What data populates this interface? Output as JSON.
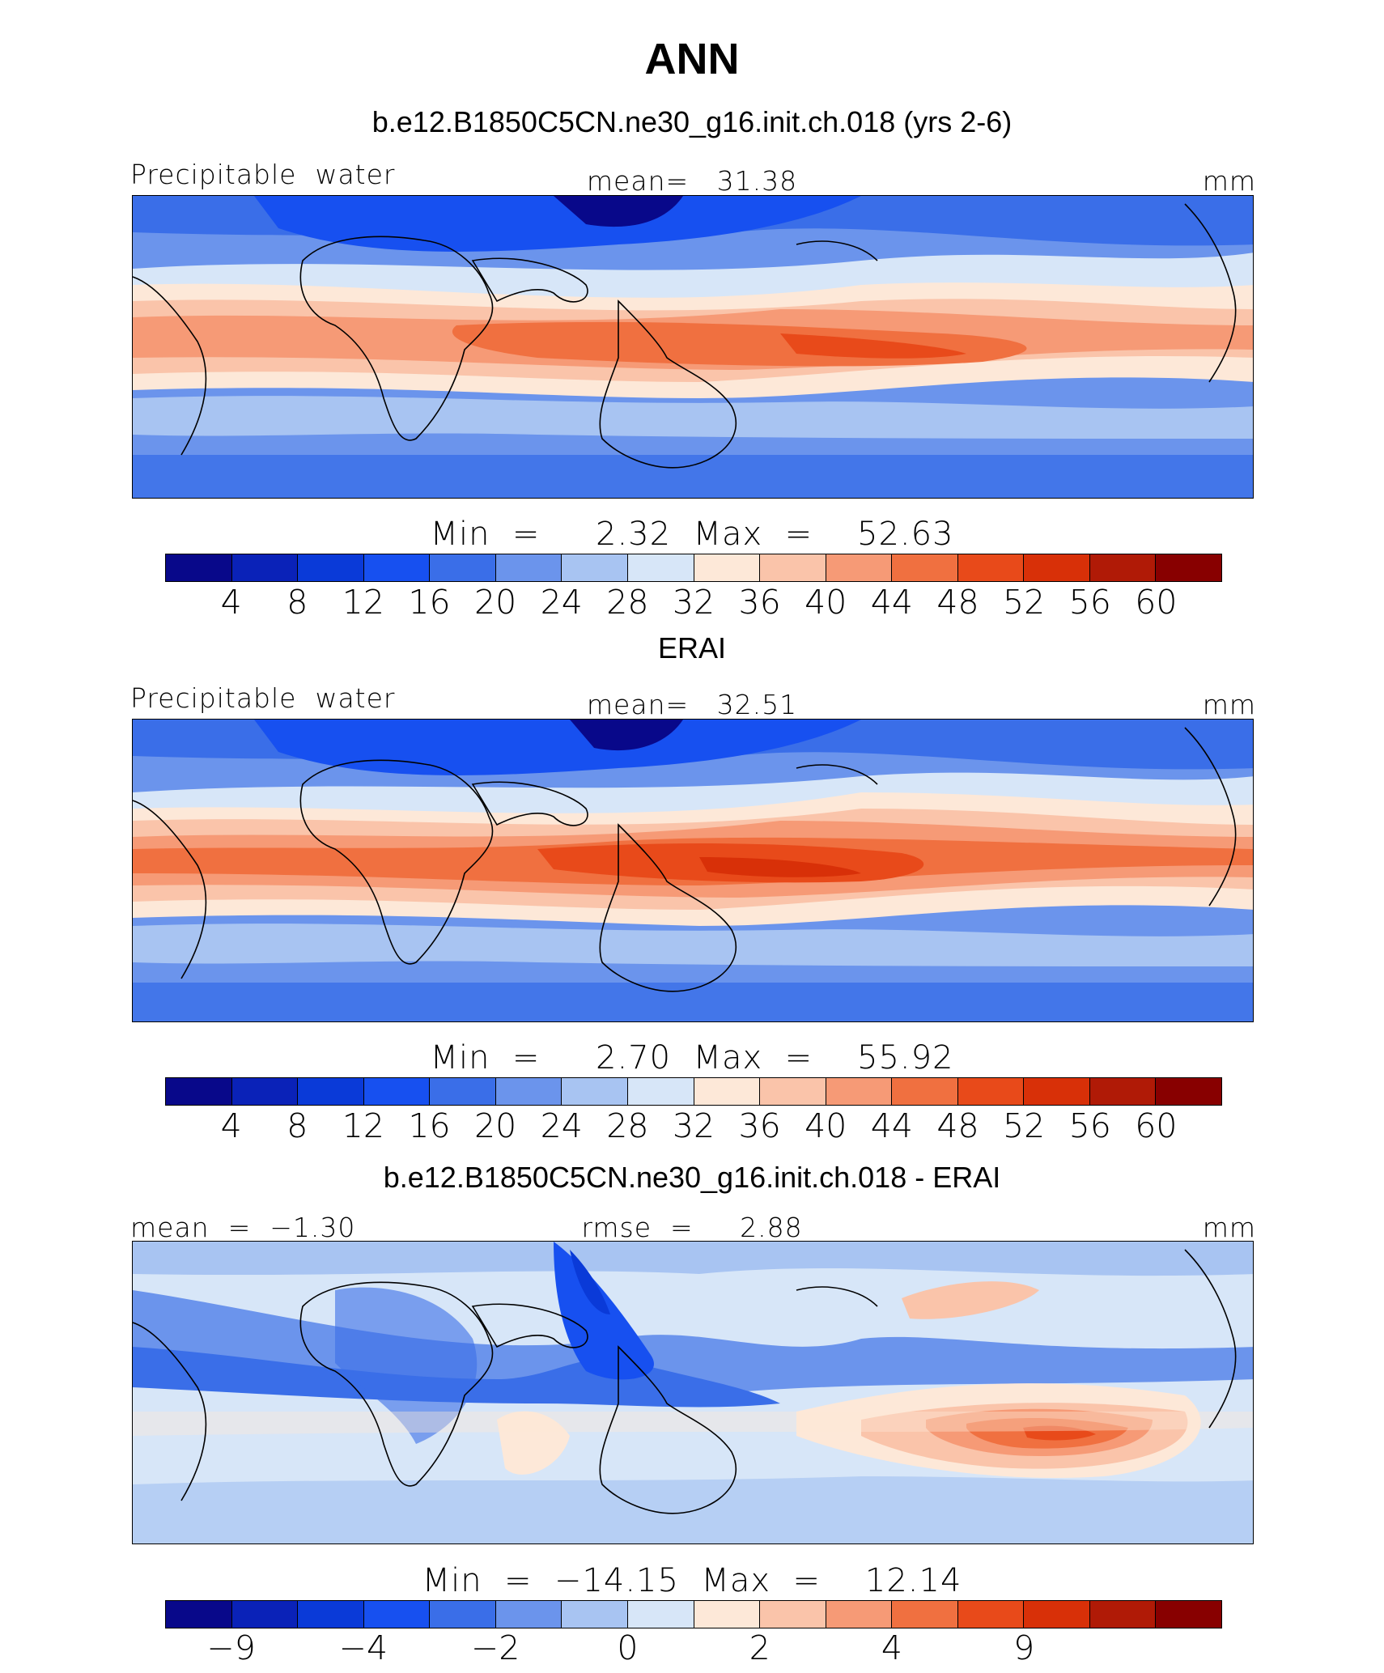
{
  "title": "ANN",
  "colors": [
    "#08088a",
    "#0a22b8",
    "#0a3ad8",
    "#1750f0",
    "#3a6ee8",
    "#6b94ec",
    "#a8c4f2",
    "#d7e6f8",
    "#fde8d8",
    "#fac4aa",
    "#f69a76",
    "#f07040",
    "#e84a1a",
    "#d83008",
    "#b01a06",
    "#880000"
  ],
  "panels": [
    {
      "case_title": "b.e12.B1850C5CN.ne30_g16.init.ch.018 (yrs 2-6)",
      "left_label": "Precipitable  water",
      "center_label": "mean=   31.38",
      "units": "mm",
      "minmax": "Min  =     2.32  Max  =    52.63",
      "ticks": [
        "4",
        "8",
        "12",
        "16",
        "20",
        "24",
        "28",
        "32",
        "36",
        "40",
        "44",
        "48",
        "52",
        "56",
        "60"
      ]
    },
    {
      "case_title": "ERAI",
      "left_label": "Precipitable  water",
      "center_label": "mean=   32.51",
      "units": "mm",
      "minmax": "Min  =     2.70  Max  =    55.92",
      "ticks": [
        "4",
        "8",
        "12",
        "16",
        "20",
        "24",
        "28",
        "32",
        "36",
        "40",
        "44",
        "48",
        "52",
        "56",
        "60"
      ]
    },
    {
      "case_title": "b.e12.B1850C5CN.ne30_g16.init.ch.018 - ERAI",
      "left_label": "mean  =  −1.30",
      "center_label": "rmse  =     2.88",
      "units": "mm",
      "minmax": "Min  =  −14.15  Max  =    12.14",
      "ticks": [
        "−9",
        "",
        "−4",
        "",
        "−2",
        "",
        "0",
        "",
        "2",
        "",
        "4",
        "",
        "9",
        "",
        ""
      ]
    }
  ]
}
